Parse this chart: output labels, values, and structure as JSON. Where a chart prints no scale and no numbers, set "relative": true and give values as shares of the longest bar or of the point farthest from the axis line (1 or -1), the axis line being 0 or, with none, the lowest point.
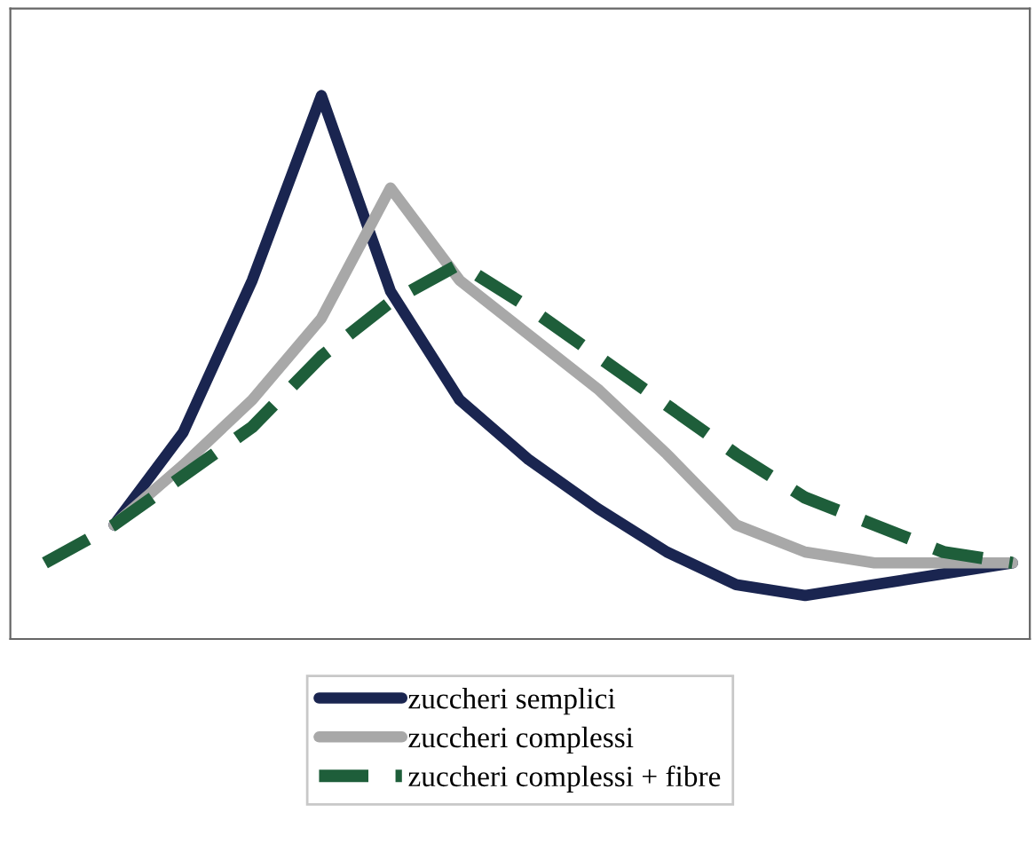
{
  "chart_data": {
    "type": "line",
    "relative": true,
    "categories": [
      null,
      null,
      null,
      null,
      null,
      null,
      null,
      null,
      null,
      null,
      null,
      null,
      null,
      null,
      null
    ],
    "series": [
      {
        "name": "zuccheri semplici",
        "color": "#1a2550",
        "line_style": "solid",
        "values": [
          null,
          0.21,
          0.38,
          0.66,
          1,
          0.64,
          0.44,
          0.33,
          0.24,
          0.16,
          0.1,
          0.08,
          0.1,
          0.12,
          0.14
        ]
      },
      {
        "name": "zuccheri complessi",
        "color": "#a8a8a8",
        "line_style": "solid",
        "values": [
          null,
          0.21,
          0.32,
          0.44,
          0.59,
          0.83,
          0.66,
          0.56,
          0.46,
          0.34,
          0.21,
          0.16,
          0.14,
          0.14,
          0.14
        ]
      },
      {
        "name": "zuccheri complessi + fibre",
        "color": "#1e5e3a",
        "line_style": "dashed",
        "values": [
          0.14,
          0.21,
          0.3,
          0.39,
          0.52,
          0.62,
          0.69,
          0.61,
          0.52,
          0.43,
          0.34,
          0.26,
          0.21,
          0.16,
          0.14
        ]
      }
    ],
    "legend": "bottom",
    "grid": false
  }
}
